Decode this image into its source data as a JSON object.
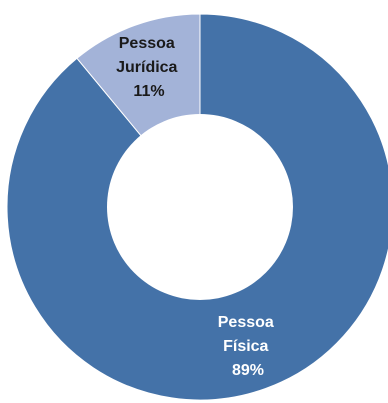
{
  "chart_data": {
    "type": "pie",
    "variant": "donut",
    "title": "",
    "legend": "none",
    "slices": [
      {
        "name_lines": [
          "Pessoa",
          "Física"
        ],
        "value_label": "89%",
        "value": 89,
        "color": "#4472a8",
        "label_color": "#ffffff"
      },
      {
        "name_lines": [
          "Pessoa",
          "Jurídica"
        ],
        "value_label": "11%",
        "value": 11,
        "color": "#a3b3d8",
        "label_color": "#1a1a1a"
      }
    ]
  }
}
